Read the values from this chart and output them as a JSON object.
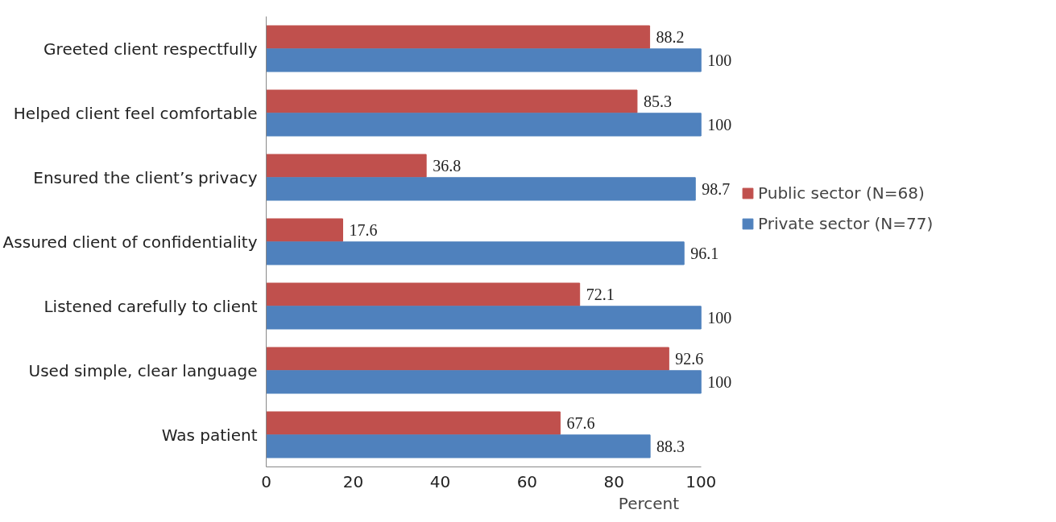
{
  "chart_data": {
    "type": "bar",
    "orientation": "horizontal",
    "xlabel": "Percent",
    "categories": [
      "Greeted client respectfully",
      "Helped client feel comfortable",
      "Ensured the client’s privacy",
      "Assured client of confidentiality",
      "Listened carefully to client",
      "Used simple, clear language",
      "Was patient"
    ],
    "series": [
      {
        "name": "Public sector (N=68)",
        "color": "#c0504d",
        "values": [
          88.2,
          85.3,
          36.8,
          17.6,
          72.1,
          92.6,
          67.6
        ]
      },
      {
        "name": "Private sector (N=77)",
        "color": "#4f81bd",
        "values": [
          100,
          100,
          98.7,
          96.1,
          100,
          100,
          88.3
        ]
      }
    ],
    "xlim": [
      0,
      100
    ],
    "xticks": [
      0,
      20,
      40,
      60,
      80,
      100
    ],
    "grid": false,
    "legend": "right",
    "data_labels": true
  }
}
